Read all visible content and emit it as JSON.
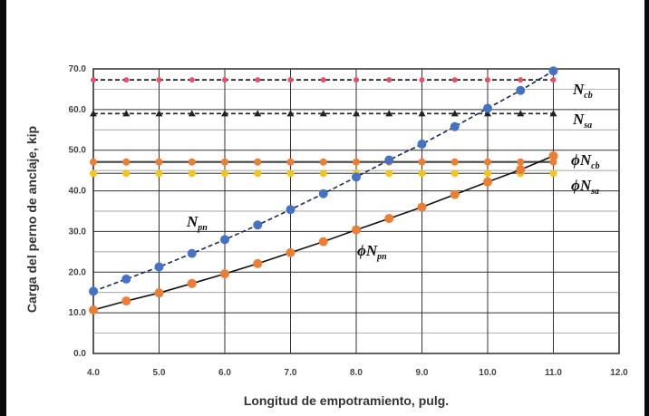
{
  "chart_data": {
    "type": "line",
    "title": "",
    "xlabel": "Longitud de empotramiento, pulg.",
    "ylabel": "Carga del perno de anclaje, kip",
    "xlim": [
      4.0,
      12.0
    ],
    "ylim": [
      0.0,
      70.0
    ],
    "xticks": [
      "4.0",
      "5.0",
      "6.0",
      "7.0",
      "8.0",
      "9.0",
      "10.0",
      "11.0",
      "12.0"
    ],
    "yticks": [
      "0.0",
      "10.0",
      "20.0",
      "30.0",
      "40.0",
      "50.0",
      "60.0",
      "70.0"
    ],
    "grid": true,
    "x": [
      4.0,
      4.5,
      5.0,
      5.5,
      6.0,
      6.5,
      7.0,
      7.5,
      8.0,
      8.5,
      9.0,
      9.5,
      10.0,
      10.5,
      11.0
    ],
    "series": [
      {
        "name": "N_pn",
        "color": "#4472c4",
        "dash": true,
        "values": [
          15.3,
          18.3,
          21.3,
          24.6,
          28.0,
          31.6,
          35.4,
          39.3,
          43.4,
          47.6,
          51.5,
          55.8,
          60.3,
          64.7,
          69.5
        ]
      },
      {
        "name": "φN_pn",
        "color": "#ed7d31",
        "dash": false,
        "values": [
          10.7,
          12.9,
          14.9,
          17.2,
          19.6,
          22.1,
          24.8,
          27.5,
          30.4,
          33.2,
          36.0,
          39.1,
          42.2,
          45.2,
          48.6
        ]
      },
      {
        "name": "N_cb",
        "color": "#e8506a",
        "dash": true,
        "values": [
          67.3,
          67.3,
          67.3,
          67.3,
          67.3,
          67.3,
          67.3,
          67.3,
          67.3,
          67.3,
          67.3,
          67.3,
          67.3,
          67.3,
          67.3
        ]
      },
      {
        "name": "N_sa",
        "color": "#222222",
        "dash": true,
        "values": [
          59.0,
          59.0,
          59.0,
          59.0,
          59.0,
          59.0,
          59.0,
          59.0,
          59.0,
          59.0,
          59.0,
          59.0,
          59.0,
          59.0,
          59.0
        ]
      },
      {
        "name": "φN_cb",
        "color": "#ed7d31",
        "dash": false,
        "values": [
          47.1,
          47.1,
          47.1,
          47.1,
          47.1,
          47.1,
          47.1,
          47.1,
          47.1,
          47.1,
          47.1,
          47.1,
          47.1,
          47.1,
          47.1
        ]
      },
      {
        "name": "φN_sa",
        "color": "#f5c518",
        "dash": false,
        "values": [
          44.3,
          44.3,
          44.3,
          44.3,
          44.3,
          44.3,
          44.3,
          44.3,
          44.3,
          44.3,
          44.3,
          44.3,
          44.3,
          44.3,
          44.3
        ]
      }
    ],
    "annotations": {
      "npn": {
        "main": "N",
        "sub": "pn"
      },
      "phinpn": {
        "main": "ϕN",
        "sub": "pn"
      },
      "ncb": {
        "main": "N",
        "sub": "cb"
      },
      "nsa": {
        "main": "N",
        "sub": "sa"
      },
      "phincb": {
        "main": "ϕN",
        "sub": "cb"
      },
      "phinsa": {
        "main": "ϕN",
        "sub": "sa"
      }
    }
  }
}
